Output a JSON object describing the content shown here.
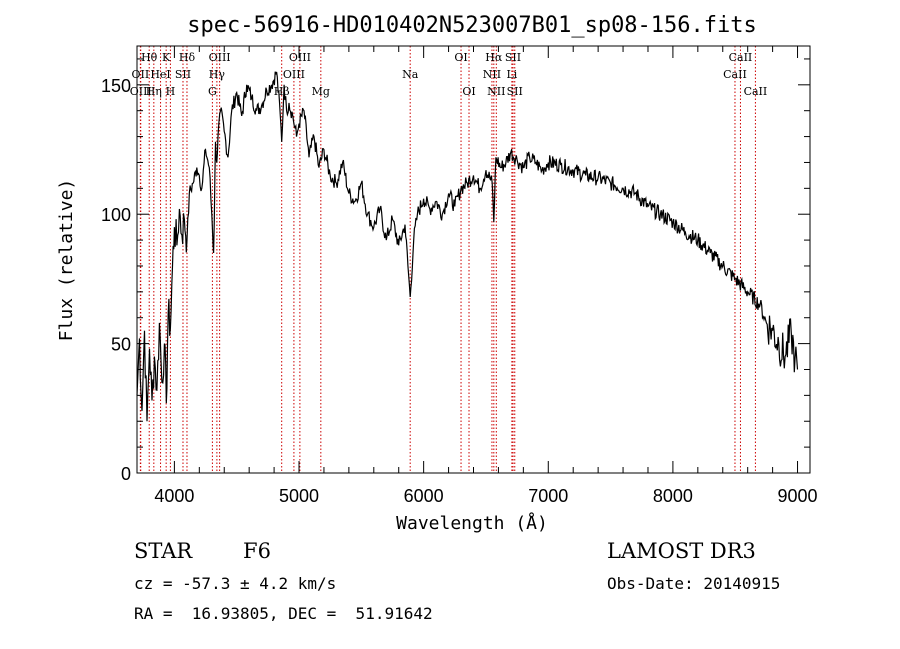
{
  "chart_data": {
    "type": "line",
    "title": "spec-56916-HD010402N523007B01_sp08-156.fits",
    "xlabel": "Wavelength (Å)",
    "ylabel": "Flux (relative)",
    "xlim": [
      3700,
      9100
    ],
    "ylim": [
      0,
      165
    ],
    "xticks": [
      4000,
      5000,
      6000,
      7000,
      8000,
      9000
    ],
    "yticks": [
      0,
      50,
      100,
      150
    ],
    "grid": false,
    "series": [
      {
        "x": [
          3700,
          3720,
          3740,
          3760,
          3780,
          3800,
          3820,
          3840,
          3860,
          3880,
          3900,
          3920,
          3935,
          3950,
          3968,
          3985,
          4000,
          4020,
          4040,
          4060,
          4080,
          4101,
          4120,
          4150,
          4180,
          4200,
          4220,
          4250,
          4280,
          4300,
          4315,
          4330,
          4340,
          4350,
          4370,
          4400,
          4430,
          4460,
          4500,
          4540,
          4580,
          4620,
          4660,
          4700,
          4740,
          4780,
          4820,
          4850,
          4861,
          4880,
          4900,
          4920,
          4950,
          4980,
          5000,
          5040,
          5080,
          5120,
          5160,
          5200,
          5250,
          5300,
          5350,
          5400,
          5450,
          5500,
          5550,
          5600,
          5650,
          5700,
          5750,
          5800,
          5850,
          5892,
          5920,
          5950,
          6000,
          6050,
          6100,
          6150,
          6200,
          6250,
          6300,
          6350,
          6400,
          6450,
          6500,
          6550,
          6563,
          6580,
          6620,
          6660,
          6700,
          6750,
          6800,
          6850,
          6900,
          6950,
          7000,
          7100,
          7200,
          7300,
          7400,
          7500,
          7600,
          7700,
          7800,
          7900,
          8000,
          8100,
          8200,
          8300,
          8400,
          8500,
          8600,
          8700,
          8750,
          8800,
          8850,
          8900,
          8950,
          8980,
          9000
        ],
        "values": [
          30,
          52,
          24,
          55,
          20,
          48,
          28,
          45,
          32,
          58,
          35,
          50,
          27,
          62,
          56,
          80,
          95,
          88,
          102,
          92,
          98,
          90,
          108,
          112,
          118,
          115,
          110,
          125,
          118,
          100,
          85,
          128,
          120,
          130,
          140,
          132,
          122,
          140,
          147,
          138,
          150,
          145,
          140,
          142,
          148,
          150,
          155,
          138,
          128,
          150,
          140,
          143,
          138,
          130,
          135,
          140,
          122,
          130,
          118,
          125,
          115,
          112,
          120,
          108,
          105,
          112,
          100,
          95,
          102,
          90,
          98,
          88,
          96,
          68,
          90,
          100,
          106,
          102,
          105,
          100,
          108,
          103,
          110,
          112,
          115,
          110,
          117,
          112,
          97,
          122,
          118,
          120,
          124,
          121,
          118,
          122,
          120,
          117,
          120,
          119,
          117,
          115,
          114,
          112,
          110,
          108,
          103,
          100,
          97,
          93,
          90,
          85,
          80,
          75,
          70,
          65,
          58,
          55,
          50,
          45,
          54,
          44,
          40
        ]
      }
    ],
    "spectral_lines": [
      {
        "label": "Hθ",
        "x": 3798,
        "row": 0
      },
      {
        "label": "OII",
        "x": 3727,
        "row": 1
      },
      {
        "label": "OIII",
        "x": 3730,
        "row": 2
      },
      {
        "label": "K",
        "x": 3934,
        "row": 0
      },
      {
        "label": "HeI",
        "x": 3889,
        "row": 1
      },
      {
        "label": "Hη",
        "x": 3835,
        "row": 2
      },
      {
        "label": "Hδ",
        "x": 4101,
        "row": 0
      },
      {
        "label": "SII",
        "x": 4069,
        "row": 1
      },
      {
        "label": "H",
        "x": 3968,
        "row": 2
      },
      {
        "label": "OIII",
        "x": 4363,
        "row": 0
      },
      {
        "label": "Hγ",
        "x": 4341,
        "row": 1
      },
      {
        "label": "G",
        "x": 4305,
        "row": 2
      },
      {
        "label": "OIII",
        "x": 5007,
        "row": 0
      },
      {
        "label": "OIII",
        "x": 4959,
        "row": 1
      },
      {
        "label": "Hβ",
        "x": 4861,
        "row": 2
      },
      {
        "label": "Mg",
        "x": 5175,
        "row": 2
      },
      {
        "label": "Na",
        "x": 5892,
        "row": 1
      },
      {
        "label": "OI",
        "x": 6300,
        "row": 0
      },
      {
        "label": "OI",
        "x": 6364,
        "row": 2
      },
      {
        "label": "Hα",
        "x": 6563,
        "row": 0
      },
      {
        "label": "NII",
        "x": 6548,
        "row": 1
      },
      {
        "label": "NII",
        "x": 6583,
        "row": 2
      },
      {
        "label": "SII",
        "x": 6717,
        "row": 0
      },
      {
        "label": "Li",
        "x": 6708,
        "row": 1
      },
      {
        "label": "SII",
        "x": 6731,
        "row": 2
      },
      {
        "label": "CaII",
        "x": 8542,
        "row": 0
      },
      {
        "label": "CaII",
        "x": 8498,
        "row": 1
      },
      {
        "label": "CaII",
        "x": 8662,
        "row": 2
      }
    ]
  },
  "info": {
    "object_type": "STAR",
    "subclass": "F6",
    "survey": "LAMOST DR3",
    "redshift": "cz = -57.3 ± 4.2 km/s",
    "obs_date": "Obs-Date: 20140915",
    "coords": "RA =  16.93805, DEC =  51.91642"
  },
  "colors": {
    "line": "#000000",
    "marker": "#cc0000",
    "axes": "#000000"
  }
}
